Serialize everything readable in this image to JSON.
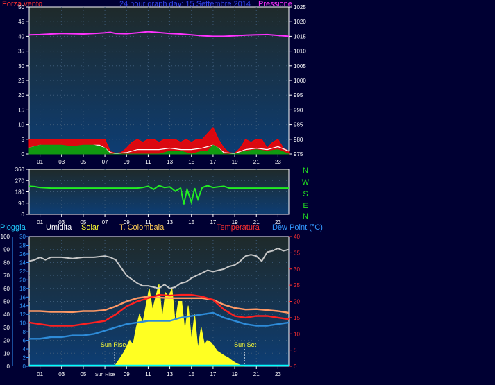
{
  "header": {
    "left_label": "Forza vento",
    "title": "24 hour graph day:  15 Settembre 2014",
    "right_label": "Pressione"
  },
  "colors": {
    "background": "#000033",
    "plot_bg_top": "#1f2a2a",
    "plot_bg_bottom": "#0d3d73",
    "pressure": "#ff33ff",
    "wind_gust": "#ff0000",
    "wind_avg": "#ffffff",
    "wind_green": "#119911",
    "direction": "#22ee22",
    "rain": "#00ffff",
    "humidity": "#c8c8c8",
    "solar": "#ffff22",
    "temp_colombaia": "#ff9966",
    "temperature": "#ff2020",
    "dew_point": "#2e8bd8",
    "axis_red": "#ff3030",
    "axis_magenta": "#dd33dd",
    "axis_blue": "#3399ff",
    "tick_text": "#ffffff"
  },
  "chart_data": [
    {
      "type": "line",
      "name": "wind-pressure",
      "x_tick_labels": [
        "01",
        "03",
        "05",
        "07",
        "09",
        "11",
        "13",
        "15",
        "17",
        "19",
        "21",
        "23"
      ],
      "y_left_ticks": [
        0,
        5,
        10,
        15,
        20,
        25,
        30,
        35,
        40,
        45,
        50
      ],
      "y_right_ticks": [
        975,
        980,
        985,
        990,
        995,
        1000,
        1005,
        1010,
        1015,
        1020,
        1025
      ],
      "ylim_left": [
        0,
        50
      ],
      "ylim_right": [
        975,
        1025
      ],
      "series": [
        {
          "name": "Pressione",
          "axis": "right",
          "color": "pressure",
          "x": [
            0,
            1,
            2,
            3,
            4,
            5,
            6,
            7,
            7.5,
            8,
            9,
            10,
            11,
            12,
            13,
            14,
            15,
            16,
            17,
            18,
            19,
            20,
            21,
            22,
            23,
            24
          ],
          "y": [
            1015.5,
            1015.6,
            1015.8,
            1016,
            1015.9,
            1015.8,
            1016,
            1016.2,
            1016.4,
            1016,
            1015.9,
            1016.2,
            1016.6,
            1016.3,
            1016,
            1015.8,
            1015.5,
            1015.2,
            1015,
            1015,
            1015.2,
            1015.4,
            1015.5,
            1015.6,
            1015.3,
            1015
          ]
        },
        {
          "name": "gust",
          "axis": "left",
          "color": "wind_gust",
          "x": [
            0,
            1,
            2,
            3,
            4,
            5,
            6,
            6.5,
            7,
            7.5,
            8,
            8.5,
            9,
            9.5,
            10,
            10.5,
            11,
            11.5,
            12,
            12.5,
            13,
            13.5,
            14,
            14.5,
            15,
            15.5,
            16,
            16.5,
            17,
            17.5,
            18,
            18.5,
            19,
            19.5,
            20,
            20.5,
            21,
            21.5,
            22,
            22.5,
            23,
            23.5,
            24
          ],
          "y": [
            5,
            5,
            5,
            5,
            5,
            5,
            5,
            5,
            5,
            0.8,
            0.3,
            0.5,
            2,
            4,
            5,
            4,
            5,
            5,
            4,
            5,
            5,
            5,
            4,
            5,
            4,
            5,
            5,
            7,
            9,
            5,
            2,
            0.5,
            0.3,
            2,
            5,
            4,
            5,
            5,
            2,
            4,
            5,
            2,
            1
          ]
        },
        {
          "name": "average",
          "axis": "left",
          "color": "wind_avg",
          "x": [
            0,
            1,
            2,
            3,
            4,
            5,
            6,
            6.5,
            7,
            7.5,
            8,
            9,
            10,
            11,
            12,
            13,
            14,
            15,
            16,
            17,
            17.5,
            18,
            19,
            20,
            21,
            22,
            23,
            24
          ],
          "y": [
            2,
            3,
            2.5,
            2.5,
            2,
            2.5,
            3,
            3,
            2,
            0.5,
            0.2,
            0.5,
            1.5,
            1.5,
            1.5,
            2,
            1.5,
            1.5,
            2,
            3,
            2,
            0.5,
            0.2,
            1.5,
            2,
            1.5,
            2.5,
            1
          ]
        },
        {
          "name": "green",
          "axis": "left",
          "color": "wind_green",
          "x": [
            0,
            1,
            2,
            3,
            4,
            5,
            6,
            7,
            7.5,
            8,
            9,
            10,
            11,
            12,
            13,
            14,
            15,
            16,
            16.5,
            17,
            17.5,
            18,
            19,
            20,
            21,
            22,
            23,
            24
          ],
          "y": [
            2,
            3,
            3,
            3,
            2.5,
            3,
            3,
            2,
            0,
            0,
            0,
            0,
            0,
            0,
            1,
            1,
            0,
            1,
            1,
            3,
            2,
            0,
            0,
            1,
            1.5,
            1,
            1.5,
            0
          ]
        }
      ]
    },
    {
      "type": "line",
      "name": "wind-direction",
      "x_tick_labels": [
        "01",
        "03",
        "05",
        "07",
        "09",
        "11",
        "13",
        "15",
        "17",
        "19",
        "21",
        "23"
      ],
      "y_left_ticks": [
        0,
        90,
        180,
        270,
        360
      ],
      "ylim_left": [
        0,
        360
      ],
      "compass_labels": [
        "N",
        "W",
        "S",
        "E",
        "N"
      ],
      "series": [
        {
          "name": "direction",
          "color": "direction",
          "x": [
            0,
            0.5,
            1,
            2,
            3,
            4,
            5,
            6,
            7,
            8,
            9,
            10,
            10.5,
            11,
            11.5,
            12,
            12.5,
            13,
            13.5,
            14,
            14.3,
            14.6,
            15,
            15.3,
            15.6,
            16,
            16.5,
            17,
            17.5,
            18,
            18.5,
            19,
            20,
            21,
            22,
            23,
            24
          ],
          "y": [
            225,
            222,
            215,
            210,
            210,
            210,
            210,
            210,
            210,
            210,
            210,
            210,
            215,
            225,
            200,
            230,
            215,
            220,
            185,
            210,
            80,
            200,
            95,
            210,
            120,
            215,
            230,
            215,
            220,
            225,
            210,
            210,
            210,
            210,
            210,
            210,
            210
          ]
        }
      ]
    },
    {
      "type": "line",
      "name": "weather",
      "x_tick_labels": [
        "01",
        "03",
        "05",
        "Sun Rise",
        "09",
        "11",
        "13",
        "15",
        "17",
        "19",
        "21",
        "23"
      ],
      "y_pioggia_ticks": [
        0,
        10,
        20,
        30,
        40,
        50,
        60,
        70,
        80,
        90,
        100
      ],
      "y_solar_ticks": [
        0,
        2,
        4,
        6,
        8,
        10,
        12,
        14,
        16,
        18,
        20,
        22,
        24,
        26,
        28,
        30
      ],
      "y_temp_ticks": [
        0,
        5,
        10,
        15,
        20,
        25,
        30,
        35,
        40
      ],
      "ylim_pioggia": [
        0,
        100
      ],
      "ylim_temp": [
        0,
        40
      ],
      "legend": [
        "Pioggia",
        "Umidita",
        "Solar",
        "T. Colombaia",
        "Temperatura",
        "Dew Point (°C)"
      ],
      "annotations": {
        "sunrise_label": "Sun Rise",
        "sunset_label": "Sun Set",
        "sunrise_hour": 7.9,
        "sunset_hour": 19.9
      },
      "series": [
        {
          "name": "Umidita",
          "color": "humidity",
          "x": [
            0,
            0.5,
            1,
            1.5,
            2,
            3,
            4,
            5,
            6,
            7,
            7.5,
            8,
            8.5,
            9,
            9.5,
            10,
            10.5,
            11,
            11.5,
            12,
            12.5,
            13,
            13.5,
            14,
            14.5,
            15,
            15.5,
            16,
            16.5,
            17,
            17.5,
            18,
            18.5,
            19,
            19.5,
            20,
            20.5,
            21,
            21.5,
            22,
            22.5,
            23,
            23.5,
            24
          ],
          "y": [
            81,
            82,
            84,
            82,
            84,
            84,
            83,
            84,
            84,
            85,
            84,
            82,
            76,
            70,
            67,
            64,
            62,
            62,
            61,
            60,
            63,
            60,
            61,
            64,
            65,
            68,
            70,
            72,
            74,
            73,
            74,
            75,
            77,
            78,
            81,
            85,
            86,
            85,
            81,
            88,
            89,
            91,
            89,
            90
          ]
        },
        {
          "name": "T. Colombaia",
          "color": "temp_colombaia",
          "x": [
            0,
            1,
            2,
            3,
            4,
            5,
            6,
            7,
            8,
            9,
            10,
            11,
            12,
            13,
            14,
            15,
            16,
            17,
            18,
            19,
            20,
            21,
            22,
            23,
            24
          ],
          "y": [
            17,
            17,
            16.8,
            16.8,
            16.7,
            17,
            17,
            17.3,
            18.5,
            20,
            21,
            21.5,
            21.2,
            21,
            21,
            21,
            21,
            20.5,
            19,
            18,
            17.5,
            17.6,
            17.3,
            17,
            16.5
          ]
        },
        {
          "name": "Temperatura",
          "color": "temperature",
          "x": [
            0,
            1,
            2,
            3,
            4,
            5,
            6,
            7,
            8,
            9,
            10,
            11,
            12,
            13,
            14,
            15,
            16,
            17,
            18,
            19,
            20,
            21,
            22,
            23,
            24
          ],
          "y": [
            13.5,
            13,
            12.5,
            12.5,
            12.5,
            13,
            13.5,
            14,
            16,
            18.5,
            20,
            21,
            22,
            21.8,
            22,
            22,
            21.5,
            20.5,
            17.5,
            15.5,
            15,
            15.5,
            15.5,
            15,
            14.5
          ]
        },
        {
          "name": "Dew Point (°C)",
          "color": "dew_point",
          "x": [
            0,
            1,
            2,
            3,
            4,
            5,
            6,
            7,
            8,
            9,
            10,
            11,
            12,
            13,
            14,
            15,
            16,
            17,
            18,
            19,
            20,
            21,
            22,
            23,
            24
          ],
          "y": [
            8.5,
            8.5,
            9,
            9,
            9.5,
            9.5,
            10,
            11,
            12,
            13,
            13.5,
            14,
            14,
            14,
            15,
            15.5,
            16,
            16.5,
            15,
            14,
            13,
            12.5,
            12.5,
            13,
            13.5
          ]
        },
        {
          "name": "Solar",
          "color": "solar",
          "axis": "solar",
          "x": [
            7.9,
            8.3,
            8.7,
            9,
            9.3,
            9.6,
            9.9,
            10.2,
            10.5,
            10.8,
            11.1,
            11.4,
            11.7,
            12,
            12.3,
            12.6,
            12.9,
            13.2,
            13.5,
            13.8,
            14.1,
            14.4,
            14.7,
            15,
            15.3,
            15.6,
            15.9,
            16.2,
            16.5,
            16.8,
            17.1,
            17.4,
            17.7,
            18,
            18.4,
            18.8,
            19.2,
            19.6,
            19.9
          ],
          "y": [
            0,
            1.5,
            3,
            4.5,
            6,
            5,
            9,
            12,
            10,
            14,
            18,
            13,
            16,
            19,
            11,
            17,
            16,
            18,
            10,
            15,
            15,
            8,
            14,
            6,
            12,
            4,
            9,
            5,
            6,
            5.5,
            4.5,
            3.5,
            3,
            2.5,
            2,
            1.2,
            0.6,
            0.2,
            0
          ]
        },
        {
          "name": "Pioggia",
          "color": "rain",
          "y": [
            0
          ]
        }
      ]
    }
  ]
}
